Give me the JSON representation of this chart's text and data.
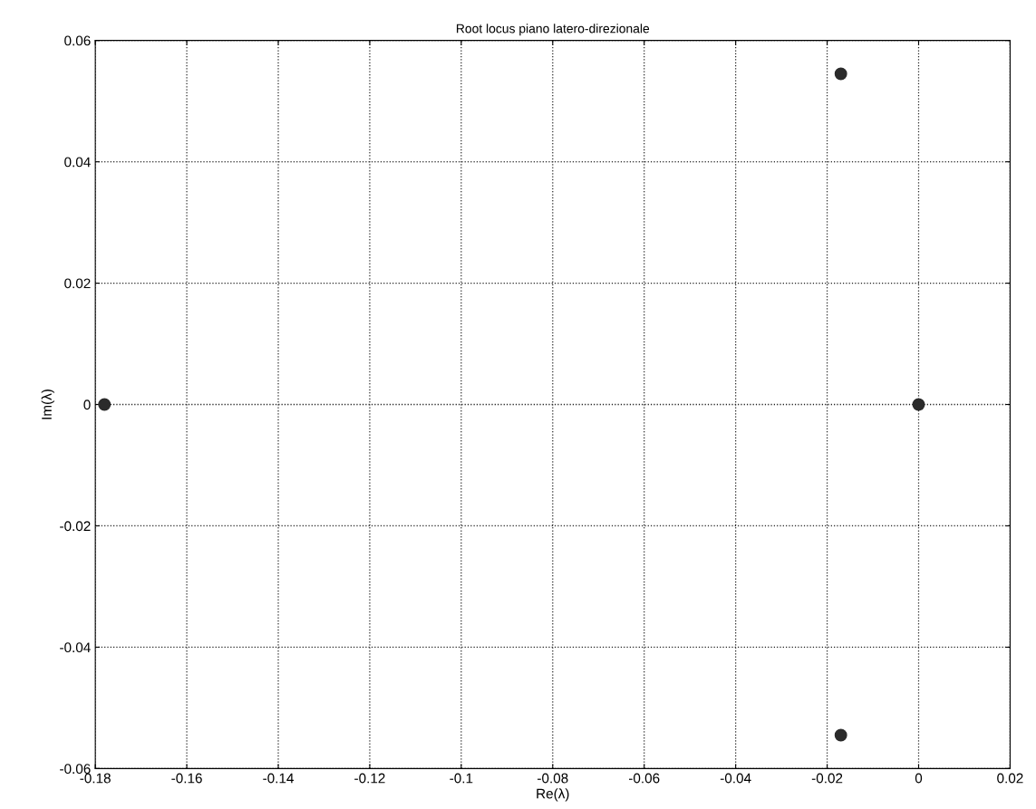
{
  "chart_data": {
    "type": "scatter",
    "title": "Root locus piano latero-direzionale",
    "xlabel": "Re(λ)",
    "ylabel": "Im(λ)",
    "series": [
      {
        "color": "#2b2b2b",
        "x": [
          -0.178,
          -0.017,
          -0.017,
          0.0
        ],
        "values": [
          0.0,
          0.0545,
          -0.0545,
          0.0
        ]
      }
    ],
    "xlim": [
      -0.18,
      0.02
    ],
    "ylim": [
      -0.06,
      0.06
    ],
    "xticks": [
      -0.18,
      -0.16,
      -0.14,
      -0.12,
      -0.1,
      -0.08,
      -0.06,
      -0.04,
      -0.02,
      0,
      0.02
    ],
    "yticks": [
      -0.06,
      -0.04,
      -0.02,
      0,
      0.02,
      0.04,
      0.06
    ],
    "grid": true,
    "marker": "circle",
    "legend": false
  }
}
